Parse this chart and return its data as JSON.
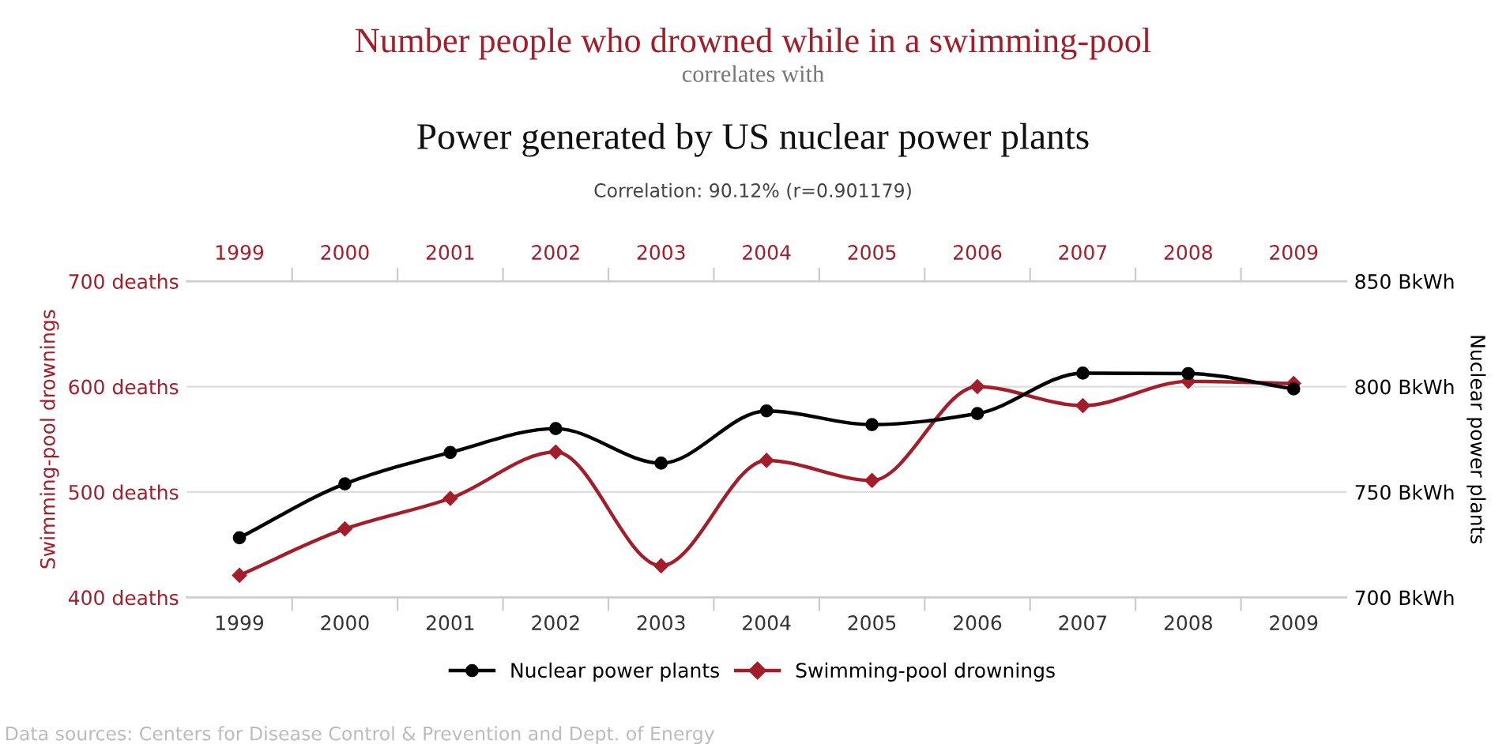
{
  "chart_data": {
    "type": "line",
    "title": "Number people who drowned while in a swimming-pool",
    "subtitle": "correlates with",
    "annotations": [
      "Power generated by US nuclear power plants",
      "Correlation: 90.12% (r=0.901179)",
      "Data sources: Centers for Disease Control & Prevention and Dept. of Energy"
    ],
    "categories": [
      "1999",
      "2000",
      "2001",
      "2002",
      "2003",
      "2004",
      "2005",
      "2006",
      "2007",
      "2008",
      "2009"
    ],
    "ylabel": "Swimming-pool drownings",
    "y2label": "Nuclear power plants",
    "ylim": [
      400,
      700
    ],
    "yticks": [
      {
        "value": 400,
        "label": "400 deaths"
      },
      {
        "value": 500,
        "label": "500 deaths"
      },
      {
        "value": 600,
        "label": "600 deaths"
      },
      {
        "value": 700,
        "label": "700 deaths"
      }
    ],
    "y2lim": [
      700,
      850
    ],
    "y2ticks": [
      {
        "value": 700,
        "label": "700 BkWh"
      },
      {
        "value": 750,
        "label": "750 BkWh"
      },
      {
        "value": 800,
        "label": "800 BkWh"
      },
      {
        "value": 850,
        "label": "850 BkWh"
      }
    ],
    "grid": "y",
    "legend": "bottom",
    "series": [
      {
        "name": "Nuclear power plants",
        "color": "#000000",
        "axis": "y2",
        "marker": "circle",
        "values": [
          728.3,
          753.9,
          768.8,
          780.1,
          763.7,
          788.5,
          782.0,
          787.2,
          806.4,
          806.2,
          798.9
        ]
      },
      {
        "name": "Swimming-pool drownings",
        "color": "#a31d2b",
        "marker": "diamond",
        "values": [
          421,
          465,
          494,
          538,
          430,
          530,
          511,
          600,
          582,
          605,
          603
        ]
      }
    ]
  }
}
